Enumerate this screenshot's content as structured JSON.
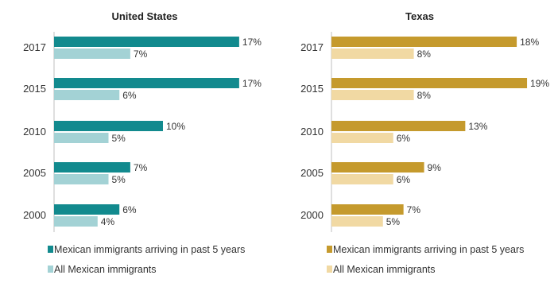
{
  "chart_data": [
    {
      "type": "bar",
      "orientation": "horizontal",
      "title": "United States",
      "categories": [
        "2017",
        "2015",
        "2010",
        "2005",
        "2000"
      ],
      "series": [
        {
          "name": "Mexican immigrants arriving in past 5 years",
          "values": [
            17,
            17,
            10,
            7,
            6
          ],
          "labels": [
            "17%",
            "17%",
            "10%",
            "7%",
            "6%"
          ],
          "color": "#128a8e"
        },
        {
          "name": "All Mexican immigrants",
          "values": [
            7,
            6,
            5,
            5,
            4
          ],
          "labels": [
            "7%",
            "6%",
            "5%",
            "5%",
            "4%"
          ],
          "color": "#a3d2d5"
        }
      ],
      "xlim": [
        0,
        20
      ],
      "grid": false,
      "legend_position": "bottom"
    },
    {
      "type": "bar",
      "orientation": "horizontal",
      "title": "Texas",
      "categories": [
        "2017",
        "2015",
        "2010",
        "2005",
        "2000"
      ],
      "series": [
        {
          "name": "Mexican immigrants arriving in past 5 years",
          "values": [
            18,
            19,
            13,
            9,
            7
          ],
          "labels": [
            "18%",
            "19%",
            "13%",
            "9%",
            "7%"
          ],
          "color": "#c59a2d"
        },
        {
          "name": "All Mexican immigrants",
          "values": [
            8,
            8,
            6,
            6,
            5
          ],
          "labels": [
            "8%",
            "8%",
            "6%",
            "6%",
            "5%"
          ],
          "color": "#f1d9a3"
        }
      ],
      "xlim": [
        0,
        20
      ],
      "grid": false,
      "legend_position": "bottom"
    }
  ]
}
